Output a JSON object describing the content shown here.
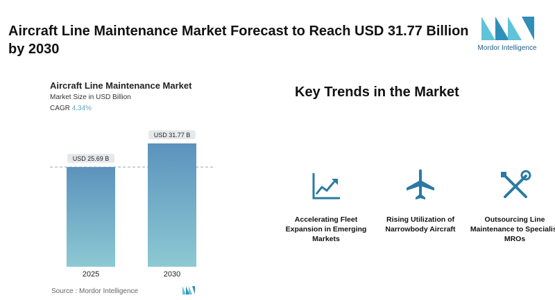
{
  "headline": "Aircraft Line Maintenance Market Forecast to Reach USD 31.77 Billion by 2030",
  "brand": {
    "name": "Mordor Intelligence",
    "color_dark": "#1f5f8a",
    "color_light": "#5fc4d9"
  },
  "chart_panel": {
    "title": "Aircraft Line Maintenance Market",
    "subtitle": "Market Size in USD Billion",
    "cagr_label": "CAGR",
    "cagr_value": "4.34%",
    "source": "Source : Mordor Intelligence"
  },
  "chart_data": {
    "type": "bar",
    "categories": [
      "2025",
      "2030"
    ],
    "values": [
      25.69,
      31.77
    ],
    "data_labels": [
      "USD 25.69 B",
      "USD 31.77 B"
    ],
    "title": "Aircraft Line Maintenance Market",
    "ylabel": "Market Size in USD Billion",
    "ylim": [
      0,
      31.77
    ],
    "grid": false,
    "reference_line_at": 25.69,
    "bar_color_top": "#5b93bd",
    "bar_color_bottom": "#8cc9d3"
  },
  "trends": {
    "title": "Key Trends in the Market",
    "items": [
      {
        "icon": "rising-chart-icon",
        "label": "Accelerating Fleet Expansion in Emerging Markets"
      },
      {
        "icon": "airplane-icon",
        "label": "Rising Utilization of Narrowbody Aircraft"
      },
      {
        "icon": "tools-icon",
        "label": "Outsourcing Line Maintenance to Specialist MROs"
      }
    ]
  }
}
